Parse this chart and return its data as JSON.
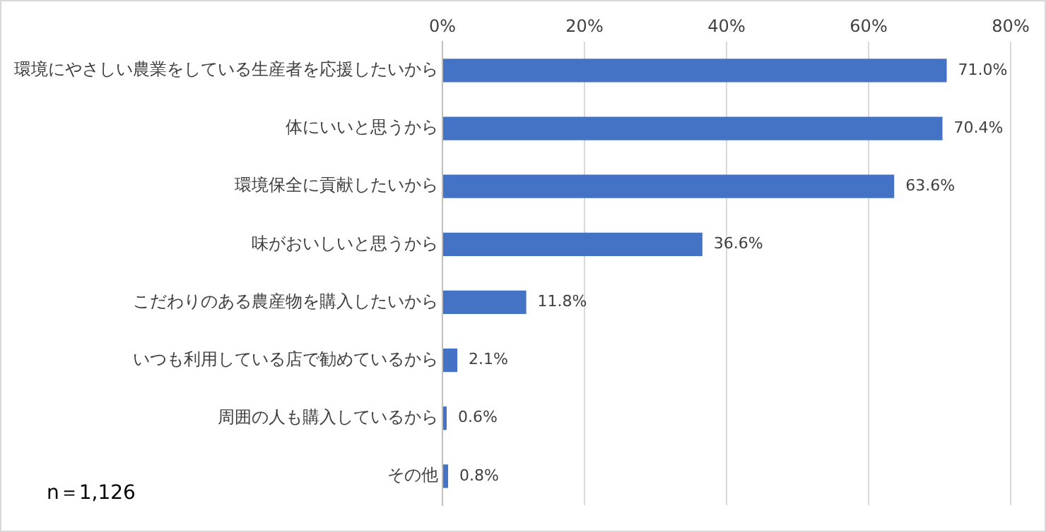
{
  "chart_data": {
    "type": "bar",
    "orientation": "horizontal",
    "categories": [
      "環境にやさしい農業をしている生産者を応援したいから",
      "体にいいと思うから",
      "環境保全に貢献したいから",
      "味がおいしいと思うから",
      "こだわりのある農産物を購入したいから",
      "いつも利用している店で勧めているから",
      "周囲の人も購入しているから",
      "その他"
    ],
    "values": [
      71.0,
      70.4,
      63.6,
      36.6,
      11.8,
      2.1,
      0.6,
      0.8
    ],
    "value_labels": [
      "71.0%",
      "70.4%",
      "63.6%",
      "36.6%",
      "11.8%",
      "2.1%",
      "0.6%",
      "0.8%"
    ],
    "color": "#4472c4",
    "xlim": [
      0,
      80
    ],
    "xticks": [
      {
        "value": 0,
        "label": "0%"
      },
      {
        "value": 20,
        "label": "20%"
      },
      {
        "value": 40,
        "label": "40%"
      },
      {
        "value": 60,
        "label": "60%"
      },
      {
        "value": 80,
        "label": "80%"
      }
    ],
    "grid": "x",
    "annotations": [
      "n＝1,126"
    ]
  }
}
